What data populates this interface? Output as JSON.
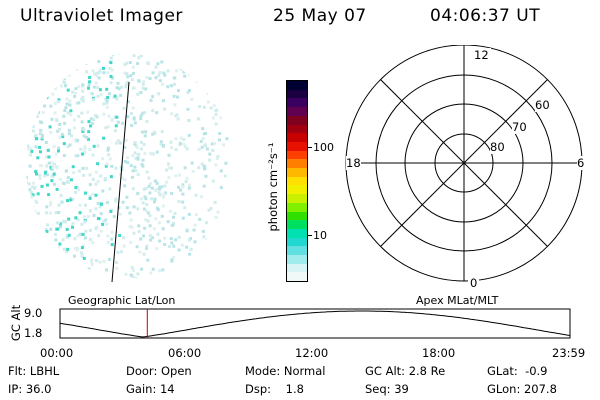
{
  "header": {
    "instrument": "Ultraviolet Imager",
    "date": "25 May 07",
    "time": "04:06:37 UT"
  },
  "colorbar": {
    "unit_label": "photon cm⁻²s⁻¹",
    "ticks": [
      "100",
      "10"
    ],
    "colors": [
      "#000033",
      "#1a0040",
      "#3a0060",
      "#600050",
      "#800020",
      "#a00010",
      "#c80000",
      "#e81000",
      "#ff4000",
      "#ff8000",
      "#ffb800",
      "#ffe000",
      "#f0f000",
      "#c8f000",
      "#80f000",
      "#30e000",
      "#00e060",
      "#00e0b0",
      "#20d8d0",
      "#60e0e0",
      "#a0ecec",
      "#d8f4f4",
      "#f0f8f8"
    ]
  },
  "polar_grid": {
    "mlt_labels": {
      "top": "12",
      "left": "18",
      "right": "6",
      "bottom": "0"
    },
    "lat_labels": [
      "60",
      "70",
      "80"
    ]
  },
  "altitude_panel": {
    "ylabel": "GC Alt",
    "ytick_top": "9.0",
    "ytick_bottom": "1.8",
    "left_title": "Geographic Lat/Lon",
    "right_title": "Apex MLat/MLT",
    "xticks": [
      "00:00",
      "06:00",
      "12:00",
      "18:00",
      "23:59"
    ],
    "current_time_marker_hours": 4.11
  },
  "status": {
    "row1": [
      {
        "label": "Flt:",
        "value": "LBHL"
      },
      {
        "label": "Door:",
        "value": "Open"
      },
      {
        "label": "Mode:",
        "value": "Normal"
      },
      {
        "label": "GC Alt:",
        "value": "2.8 Re"
      },
      {
        "label": "GLat:",
        "value": "-0.9"
      }
    ],
    "row2": [
      {
        "label": "IP:",
        "value": "36.0"
      },
      {
        "label": "Gain:",
        "value": "14"
      },
      {
        "label": "Dsp:",
        "value": "1.8"
      },
      {
        "label": "Seq:",
        "value": "39"
      },
      {
        "label": "GLon:",
        "value": "207.8"
      }
    ]
  }
}
